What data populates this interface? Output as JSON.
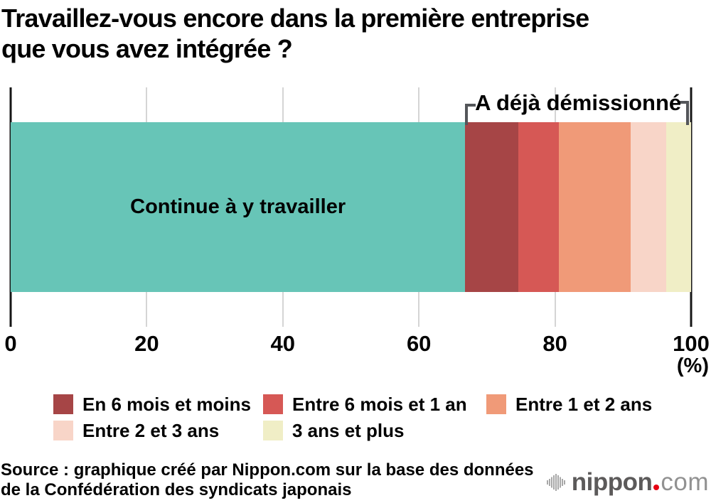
{
  "title": {
    "line1": "Travaillez-vous encore dans la première entreprise",
    "line2": "que vous avez intégrée ?"
  },
  "chart_data": {
    "type": "stacked-bar-horizontal",
    "title": "Travaillez-vous encore dans la première entreprise que vous avez intégrée ?",
    "xlabel": "(%)",
    "xlim": [
      0,
      100
    ],
    "xticks": [
      0,
      20,
      40,
      60,
      80,
      100
    ],
    "grid": "vertical",
    "segments": [
      {
        "label": "Continue à y travailler",
        "value": 66.8,
        "color": "#67c5b7",
        "group": "continue",
        "show_label_in_bar": true
      },
      {
        "label": "En 6 mois et moins",
        "value": 7.8,
        "color": "#a64546",
        "group": "resigned",
        "show_label_in_bar": false
      },
      {
        "label": "Entre 6 mois et 1 an",
        "value": 6.0,
        "color": "#d65855",
        "group": "resigned",
        "show_label_in_bar": false
      },
      {
        "label": "Entre 1 et 2 ans",
        "value": 10.5,
        "color": "#f09a78",
        "group": "resigned",
        "show_label_in_bar": false
      },
      {
        "label": "Entre 2 et 3 ans",
        "value": 5.2,
        "color": "#f8d5c8",
        "group": "resigned",
        "show_label_in_bar": false
      },
      {
        "label": "3 ans et plus",
        "value": 3.7,
        "color": "#f0eec6",
        "group": "resigned",
        "show_label_in_bar": false
      }
    ],
    "group_annotation": {
      "label": "A déjà démissionné",
      "from": 66.8,
      "to": 100
    },
    "legend_position": "bottom"
  },
  "axis": {
    "unit_label": "(%)"
  },
  "annotation": {
    "label": "A déjà démissionné"
  },
  "legend": {
    "items": [
      {
        "label": "En 6 mois et moins",
        "color": "#a64546"
      },
      {
        "label": "Entre 6 mois et 1 an",
        "color": "#d65855"
      },
      {
        "label": "Entre 1 et 2 ans",
        "color": "#f09a78"
      },
      {
        "label": "Entre 2 et 3 ans",
        "color": "#f8d5c8"
      },
      {
        "label": "3 ans et plus",
        "color": "#f0eec6"
      }
    ]
  },
  "source": {
    "line1": "Source : graphique créé par Nippon.com sur la base des données",
    "line2": "de la Confédération des syndicats japonais"
  },
  "logo": {
    "name": "nippon",
    "tld": "com"
  },
  "colors": {
    "axis": "#161616",
    "gridline": "#d5d5d5",
    "bracket": "#54565a",
    "logo_text": "#5c5a5a",
    "logo_dot": "#e60012",
    "logo_tld": "#919191"
  }
}
